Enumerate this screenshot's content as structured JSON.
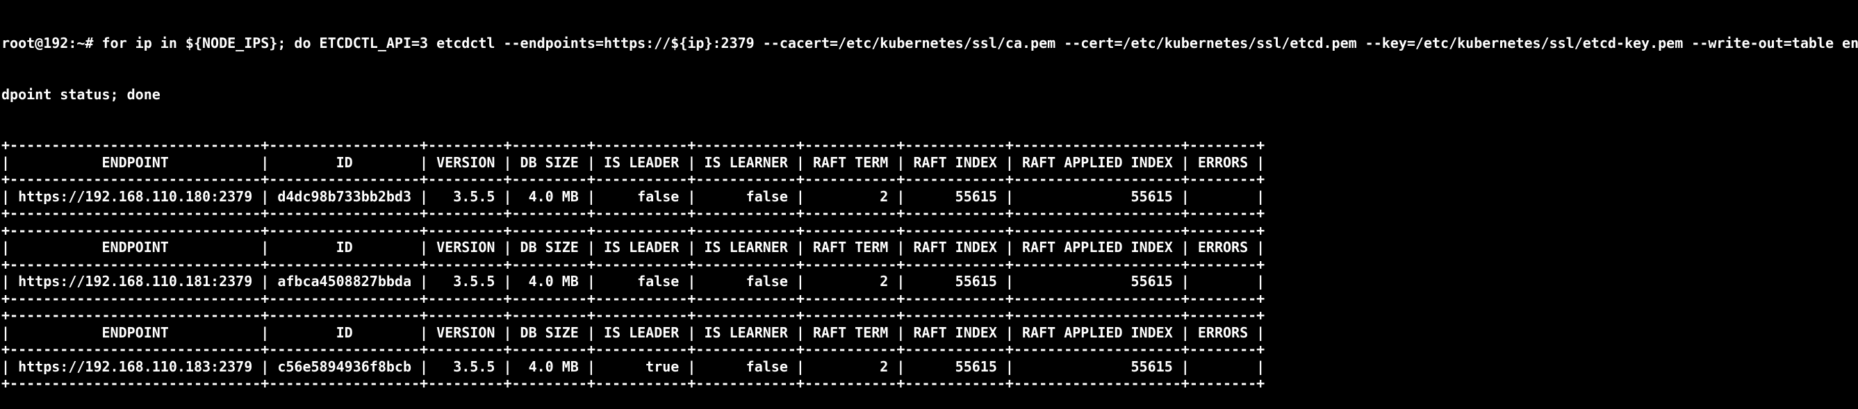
{
  "terminal": {
    "colors": {
      "background": "#000000",
      "foreground": "#ffffff"
    },
    "prompt": "root@192:~#",
    "command_lines": [
      "root@192:~# for ip in ${NODE_IPS}; do ETCDCTL_API=3 etcdctl --endpoints=https://${ip}:2379 --cacert=/etc/kubernetes/ssl/ca.pem --cert=/etc/kubernetes/ssl/etcd.pem --key=/etc/kubernetes/ssl/etcd-key.pem --write-out=table en",
      "dpoint status; done"
    ],
    "tables": [
      {
        "headers": [
          "ENDPOINT",
          "ID",
          "VERSION",
          "DB SIZE",
          "IS LEADER",
          "IS LEARNER",
          "RAFT TERM",
          "RAFT INDEX",
          "RAFT APPLIED INDEX",
          "ERRORS"
        ],
        "rows": [
          [
            "https://192.168.110.180:2379",
            "d4dc98b733bb2bd3",
            "3.5.5",
            "4.0 MB",
            "false",
            "false",
            "2",
            "55615",
            "55615",
            ""
          ]
        ]
      },
      {
        "headers": [
          "ENDPOINT",
          "ID",
          "VERSION",
          "DB SIZE",
          "IS LEADER",
          "IS LEARNER",
          "RAFT TERM",
          "RAFT INDEX",
          "RAFT APPLIED INDEX",
          "ERRORS"
        ],
        "rows": [
          [
            "https://192.168.110.181:2379",
            "afbca4508827bbda",
            "3.5.5",
            "4.0 MB",
            "false",
            "false",
            "2",
            "55615",
            "55615",
            ""
          ]
        ]
      },
      {
        "headers": [
          "ENDPOINT",
          "ID",
          "VERSION",
          "DB SIZE",
          "IS LEADER",
          "IS LEARNER",
          "RAFT TERM",
          "RAFT INDEX",
          "RAFT APPLIED INDEX",
          "ERRORS"
        ],
        "rows": [
          [
            "https://192.168.110.183:2379",
            "c56e5894936f8bcb",
            "3.5.5",
            "4.0 MB",
            "true",
            "false",
            "2",
            "55615",
            "55615",
            ""
          ]
        ]
      }
    ]
  }
}
